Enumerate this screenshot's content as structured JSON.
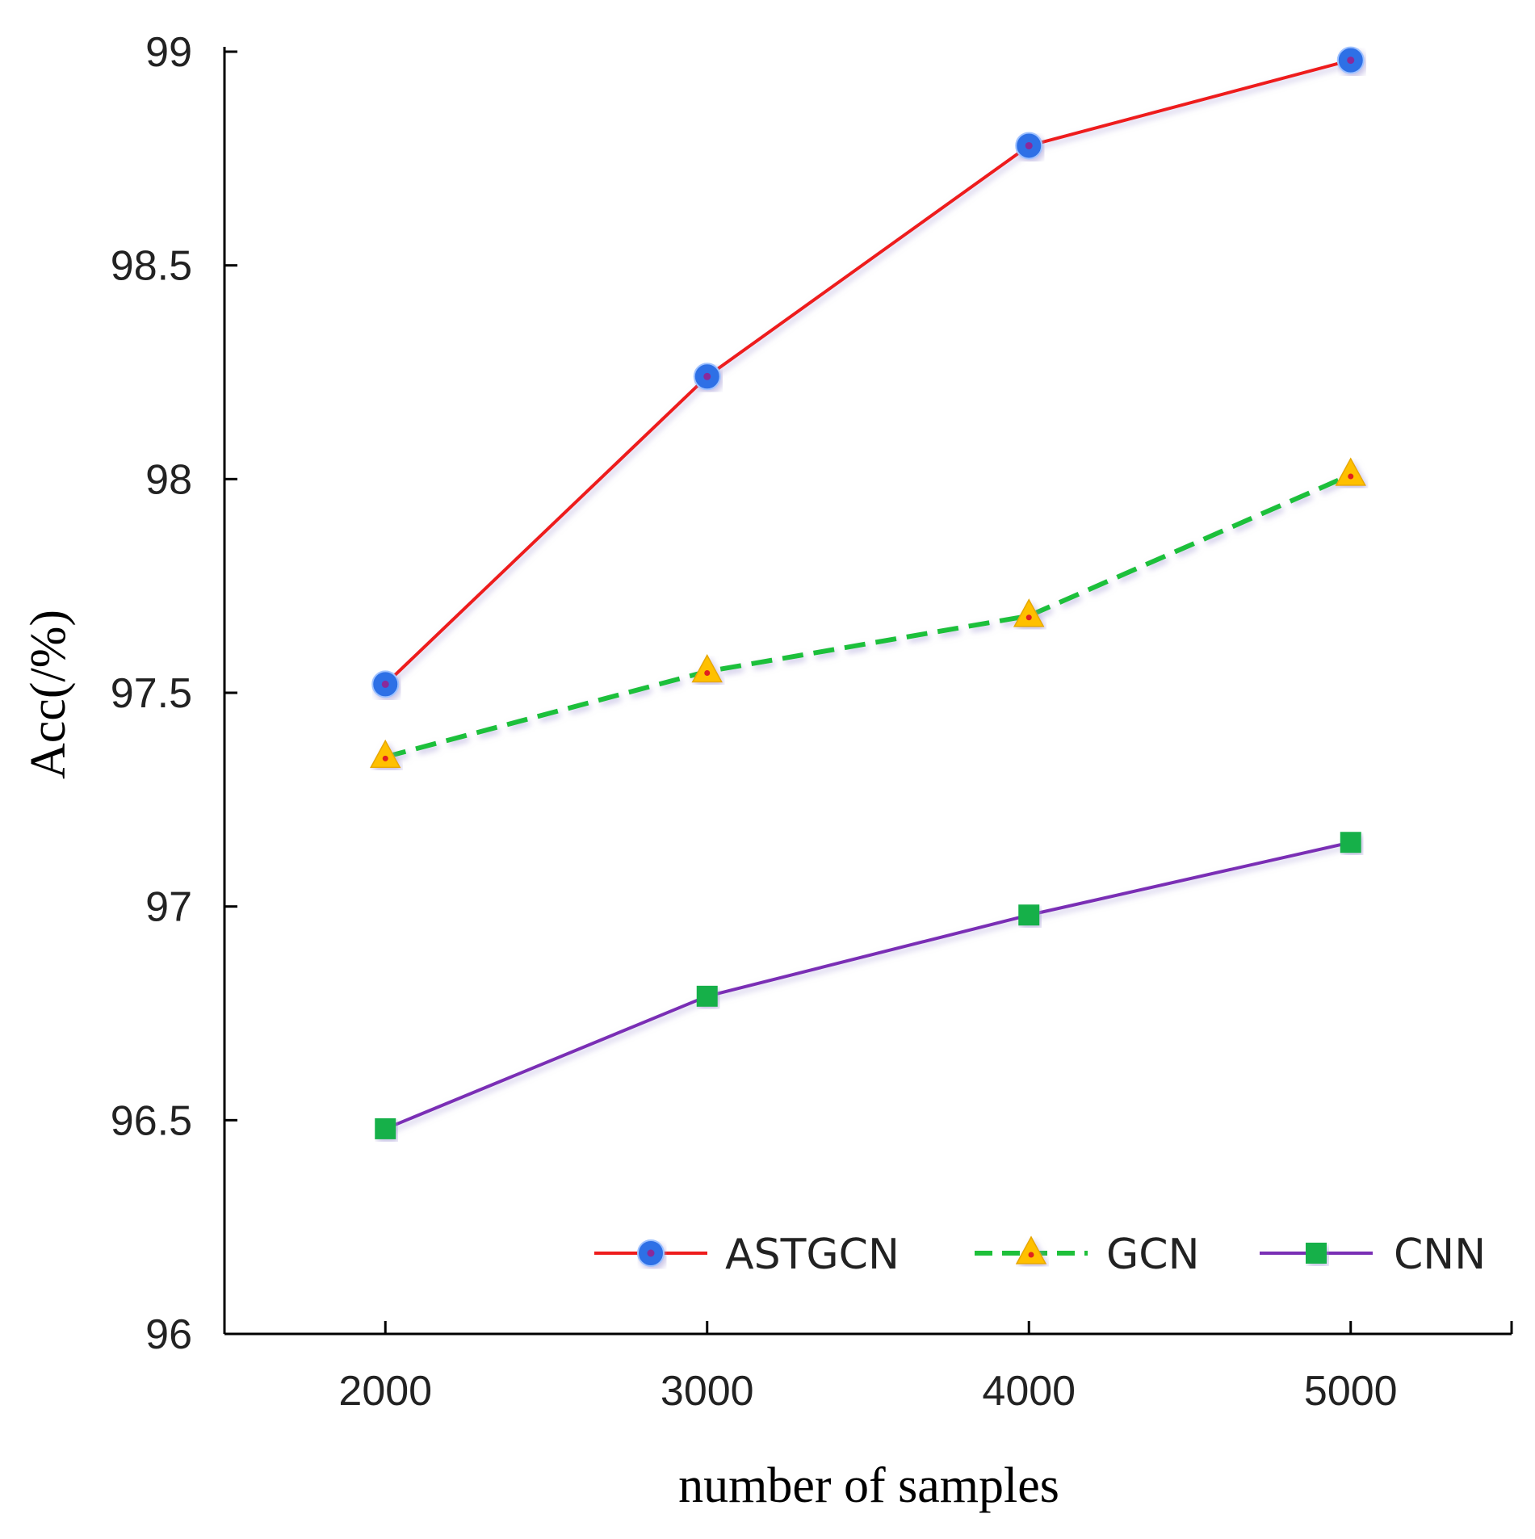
{
  "chart_data": {
    "type": "line",
    "title": "",
    "xlabel": "number of samples",
    "ylabel": "Acc(/%)",
    "x": [
      2000,
      3000,
      4000,
      5000
    ],
    "x_tick_labels": [
      "2000",
      "3000",
      "4000",
      "5000"
    ],
    "xlim": [
      1500,
      5500
    ],
    "ylim": [
      96,
      99
    ],
    "y_ticks": [
      96,
      96.5,
      97,
      97.5,
      98,
      98.5,
      99
    ],
    "y_tick_labels": [
      "96",
      "96.5",
      "97",
      "97.5",
      "98",
      "98.5",
      "99"
    ],
    "grid": false,
    "legend_position": "bottom-right",
    "series": [
      {
        "name": "ASTGCN",
        "values": [
          97.52,
          98.24,
          98.78,
          98.98
        ],
        "line_color": "#ee1c1c",
        "marker": "circle",
        "marker_color": "#2f6fe6",
        "dashed": false
      },
      {
        "name": "GCN",
        "values": [
          97.35,
          97.55,
          97.68,
          98.01
        ],
        "line_color": "#1ec03a",
        "marker": "triangle",
        "marker_color": "#ffc000",
        "dashed": true
      },
      {
        "name": "CNN",
        "values": [
          96.48,
          96.79,
          96.98,
          97.15
        ],
        "line_color": "#7a2fb5",
        "marker": "square",
        "marker_color": "#12b04a",
        "dashed": false
      }
    ]
  }
}
